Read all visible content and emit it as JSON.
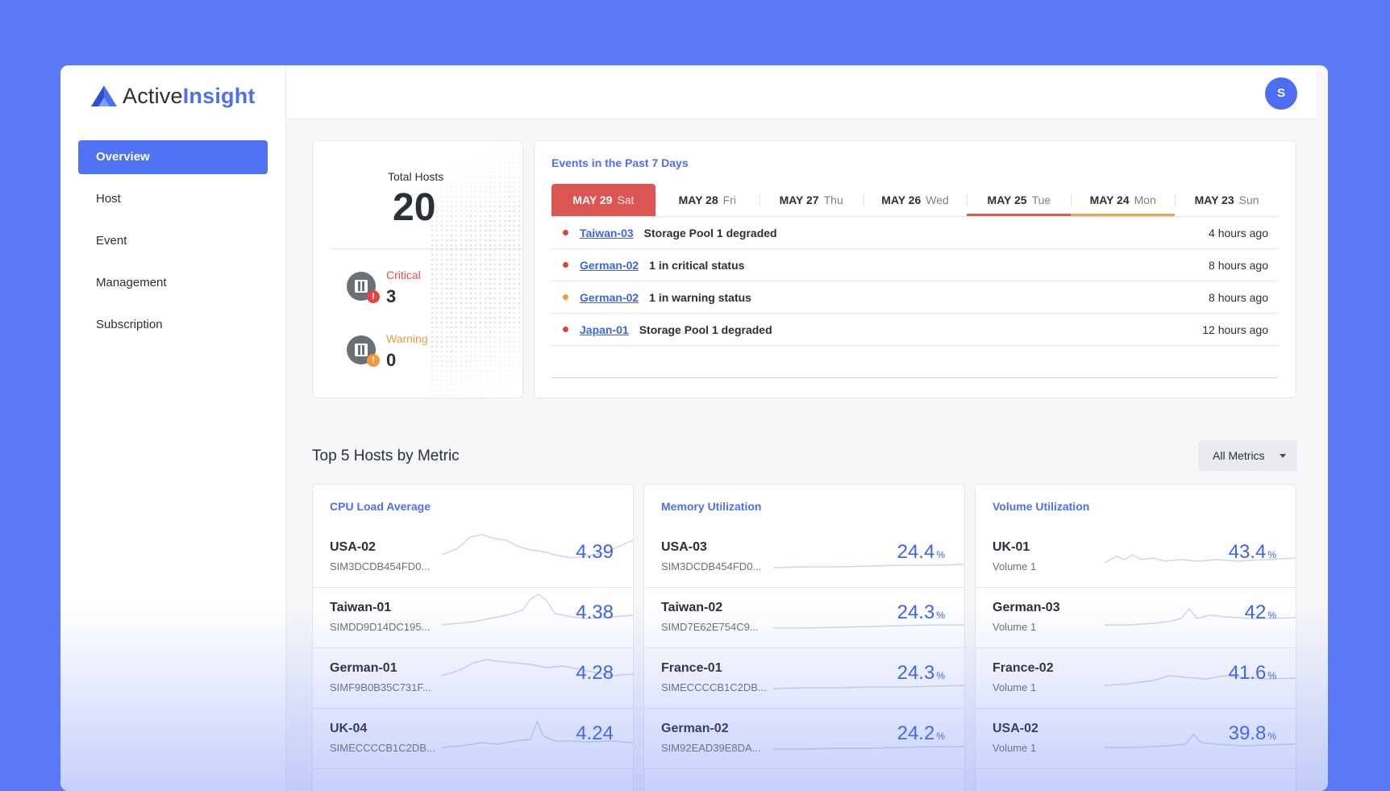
{
  "app": {
    "logo_text_a": "Active",
    "logo_text_b": "Insight",
    "avatar_initial": "S"
  },
  "sidebar": {
    "items": [
      {
        "label": "Overview",
        "active": true
      },
      {
        "label": "Host"
      },
      {
        "label": "Event"
      },
      {
        "label": "Management"
      },
      {
        "label": "Subscription"
      }
    ]
  },
  "hosts": {
    "total_label": "Total Hosts",
    "total_value": "20",
    "critical_label": "Critical",
    "critical_value": "3",
    "warning_label": "Warning",
    "warning_value": "0"
  },
  "events": {
    "title": "Events in the Past 7 Days",
    "tabs": [
      {
        "date": "MAY 29",
        "day": "Sat"
      },
      {
        "date": "MAY 28",
        "day": "Fri"
      },
      {
        "date": "MAY 27",
        "day": "Thu"
      },
      {
        "date": "MAY 26",
        "day": "Wed"
      },
      {
        "date": "MAY 25",
        "day": "Tue"
      },
      {
        "date": "MAY 24",
        "day": "Mon"
      },
      {
        "date": "MAY 23",
        "day": "Sun"
      }
    ],
    "rows": [
      {
        "host": "Taiwan-03",
        "message": "Storage Pool 1 degraded",
        "time": "4 hours ago",
        "severity": "critical"
      },
      {
        "host": "German-02",
        "message": "1 in critical status",
        "time": "8 hours ago",
        "severity": "critical"
      },
      {
        "host": "German-02",
        "message": "1 in warning status",
        "time": "8 hours ago",
        "severity": "warning"
      },
      {
        "host": "Japan-01",
        "message": "Storage Pool 1 degraded",
        "time": "12 hours ago",
        "severity": "critical"
      }
    ]
  },
  "top_hosts": {
    "title": "Top 5 Hosts by Metric",
    "filter_label": "All Metrics",
    "cards": [
      {
        "title": "CPU Load Average",
        "unit": "",
        "rows": [
          {
            "host": "USA-02",
            "sub": "SIM3DCDB454FD0...",
            "value": "4.39"
          },
          {
            "host": "Taiwan-01",
            "sub": "SIMDD9D14DC195...",
            "value": "4.38"
          },
          {
            "host": "German-01",
            "sub": "SIMF9B0B35C731F...",
            "value": "4.28"
          },
          {
            "host": "UK-04",
            "sub": "SIMECCCCB1C2DB...",
            "value": "4.24"
          }
        ]
      },
      {
        "title": "Memory Utilization",
        "unit": "%",
        "rows": [
          {
            "host": "USA-03",
            "sub": "SIM3DCDB454FD0...",
            "value": "24.4"
          },
          {
            "host": "Taiwan-02",
            "sub": "SIMD7E62E754C9...",
            "value": "24.3"
          },
          {
            "host": "France-01",
            "sub": "SIMECCCCB1C2DB...",
            "value": "24.3"
          },
          {
            "host": "German-02",
            "sub": "SIM92EAD39E8DA...",
            "value": "24.2"
          }
        ]
      },
      {
        "title": "Volume Utilization",
        "unit": "%",
        "rows": [
          {
            "host": "UK-01",
            "sub": "Volume 1",
            "value": "43.4"
          },
          {
            "host": "German-03",
            "sub": "Volume 1",
            "value": "42"
          },
          {
            "host": "France-02",
            "sub": "Volume 1",
            "value": "41.6"
          },
          {
            "host": "USA-02",
            "sub": "Volume 1",
            "value": "39.8"
          }
        ]
      }
    ]
  },
  "colors": {
    "accent": "#5072f5",
    "critical": "#dc5552",
    "warning": "#f0a24a",
    "value_blue": "#3f63e6"
  }
}
